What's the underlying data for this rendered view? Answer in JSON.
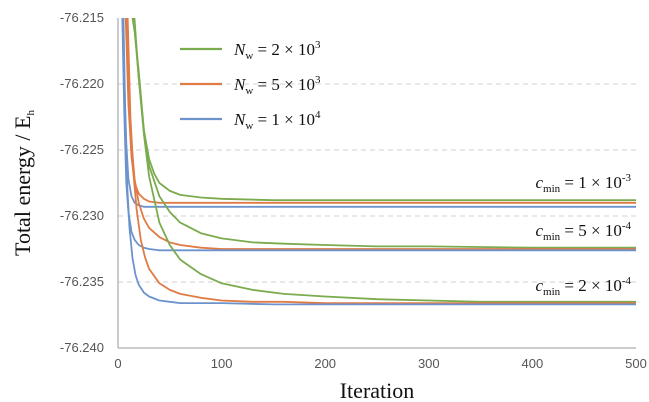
{
  "chart_data": {
    "type": "line",
    "xlabel": "Iteration",
    "ylabel": "Total energy / E",
    "ylabel_sub": "h",
    "xlim": [
      0,
      500
    ],
    "ylim": [
      -76.24,
      -76.215
    ],
    "x_ticks": [
      "0",
      "100",
      "200",
      "300",
      "400",
      "500"
    ],
    "y_ticks": [
      "-76.215",
      "-76.220",
      "-76.225",
      "-76.230",
      "-76.235",
      "-76.240"
    ],
    "grid": "horizontal dashed",
    "legend": {
      "placement": "top-left",
      "entries": [
        {
          "label_main": "N",
          "label_sub": "w",
          "label_rest": " = 2 × 10",
          "label_sup": "3",
          "color": "#7aab4e"
        },
        {
          "label_main": "N",
          "label_sub": "w",
          "label_rest": " = 5 × 10",
          "label_sup": "3",
          "color": "#e07b45"
        },
        {
          "label_main": "N",
          "label_sub": "w",
          "label_rest": " = 1 × 10",
          "label_sup": "4",
          "color": "#6d93cc"
        }
      ]
    },
    "annotations": [
      {
        "main": "c",
        "sub": "min",
        "rest": " = 1 × 10",
        "sup": "-3"
      },
      {
        "main": "c",
        "sub": "min",
        "rest": " = 5 × 10",
        "sup": "-4"
      },
      {
        "main": "c",
        "sub": "min",
        "rest": " = 2 × 10",
        "sup": "-4"
      }
    ],
    "series": [
      {
        "color": "#7aab4e",
        "group": 0,
        "x": [
          12,
          16,
          20,
          25,
          30,
          35,
          40,
          50,
          60,
          80,
          100,
          150,
          200,
          300,
          400,
          500
        ],
        "y": [
          -76.214,
          -76.216,
          -76.219,
          -76.2235,
          -76.2257,
          -76.2268,
          -76.2275,
          -76.2281,
          -76.2284,
          -76.2286,
          -76.2287,
          -76.2288,
          -76.2288,
          -76.2288,
          -76.2288,
          -76.2288
        ]
      },
      {
        "color": "#e07b45",
        "group": 0,
        "x": [
          7,
          10,
          13,
          16,
          20,
          25,
          30,
          40,
          60,
          100,
          200,
          300,
          400,
          500
        ],
        "y": [
          -76.214,
          -76.2215,
          -76.2255,
          -76.2275,
          -76.2283,
          -76.2287,
          -76.2289,
          -76.229,
          -76.229,
          -76.229,
          -76.229,
          -76.229,
          -76.229,
          -76.229
        ]
      },
      {
        "color": "#6d93cc",
        "group": 0,
        "x": [
          4,
          6,
          8,
          10,
          13,
          16,
          20,
          25,
          30,
          40,
          60,
          100,
          200,
          300,
          400,
          500
        ],
        "y": [
          -76.214,
          -76.2195,
          -76.2245,
          -76.2272,
          -76.2285,
          -76.229,
          -76.2292,
          -76.2293,
          -76.2293,
          -76.2293,
          -76.2293,
          -76.2293,
          -76.2293,
          -76.2293,
          -76.2293,
          -76.2293
        ]
      },
      {
        "color": "#7aab4e",
        "group": 1,
        "x": [
          14,
          20,
          25,
          30,
          40,
          50,
          60,
          80,
          100,
          130,
          160,
          200,
          250,
          300,
          400,
          500
        ],
        "y": [
          -76.214,
          -76.2195,
          -76.2235,
          -76.2262,
          -76.2285,
          -76.2297,
          -76.2305,
          -76.2313,
          -76.2317,
          -76.232,
          -76.2321,
          -76.2322,
          -76.2323,
          -76.2323,
          -76.2324,
          -76.2324
        ]
      },
      {
        "color": "#e07b45",
        "group": 1,
        "x": [
          8,
          12,
          16,
          20,
          25,
          30,
          40,
          50,
          60,
          80,
          100,
          150,
          200,
          300,
          400,
          500
        ],
        "y": [
          -76.214,
          -76.2235,
          -76.2272,
          -76.229,
          -76.2302,
          -76.2309,
          -76.2316,
          -76.232,
          -76.2322,
          -76.2324,
          -76.2325,
          -76.2325,
          -76.2325,
          -76.2325,
          -76.2325,
          -76.2325
        ]
      },
      {
        "color": "#6d93cc",
        "group": 1,
        "x": [
          4,
          6,
          8,
          10,
          13,
          16,
          20,
          25,
          30,
          40,
          60,
          100,
          200,
          300,
          400,
          500
        ],
        "y": [
          -76.214,
          -76.222,
          -76.2275,
          -76.2297,
          -76.2312,
          -76.2318,
          -76.2322,
          -76.2324,
          -76.2325,
          -76.2326,
          -76.2326,
          -76.2326,
          -76.2326,
          -76.2326,
          -76.2326,
          -76.2326
        ]
      },
      {
        "color": "#7aab4e",
        "group": 2,
        "x": [
          15,
          20,
          25,
          30,
          40,
          50,
          60,
          80,
          100,
          130,
          160,
          200,
          250,
          300,
          350,
          400,
          450,
          500
        ],
        "y": [
          -76.214,
          -76.2195,
          -76.2238,
          -76.227,
          -76.2305,
          -76.2322,
          -76.2333,
          -76.2344,
          -76.2351,
          -76.2356,
          -76.2359,
          -76.2361,
          -76.2363,
          -76.2364,
          -76.2365,
          -76.2365,
          -76.2365,
          -76.2365
        ]
      },
      {
        "color": "#e07b45",
        "group": 2,
        "x": [
          9,
          12,
          15,
          18,
          22,
          26,
          30,
          40,
          50,
          60,
          80,
          100,
          130,
          160,
          200,
          300,
          400,
          500
        ],
        "y": [
          -76.214,
          -76.2225,
          -76.2268,
          -76.2295,
          -76.2318,
          -76.2331,
          -76.234,
          -76.2351,
          -76.2356,
          -76.2359,
          -76.2362,
          -76.2364,
          -76.2365,
          -76.2365,
          -76.2366,
          -76.2366,
          -76.2366,
          -76.2366
        ]
      },
      {
        "color": "#6d93cc",
        "group": 2,
        "x": [
          5,
          7,
          9,
          11,
          14,
          17,
          20,
          25,
          30,
          40,
          50,
          60,
          80,
          100,
          150,
          200,
          300,
          400,
          500
        ],
        "y": [
          -76.214,
          -76.2225,
          -76.2278,
          -76.2308,
          -76.2332,
          -76.2345,
          -76.2352,
          -76.2358,
          -76.2361,
          -76.2364,
          -76.2365,
          -76.2366,
          -76.2366,
          -76.2366,
          -76.2367,
          -76.2367,
          -76.2367,
          -76.2367,
          -76.2367
        ]
      }
    ]
  }
}
